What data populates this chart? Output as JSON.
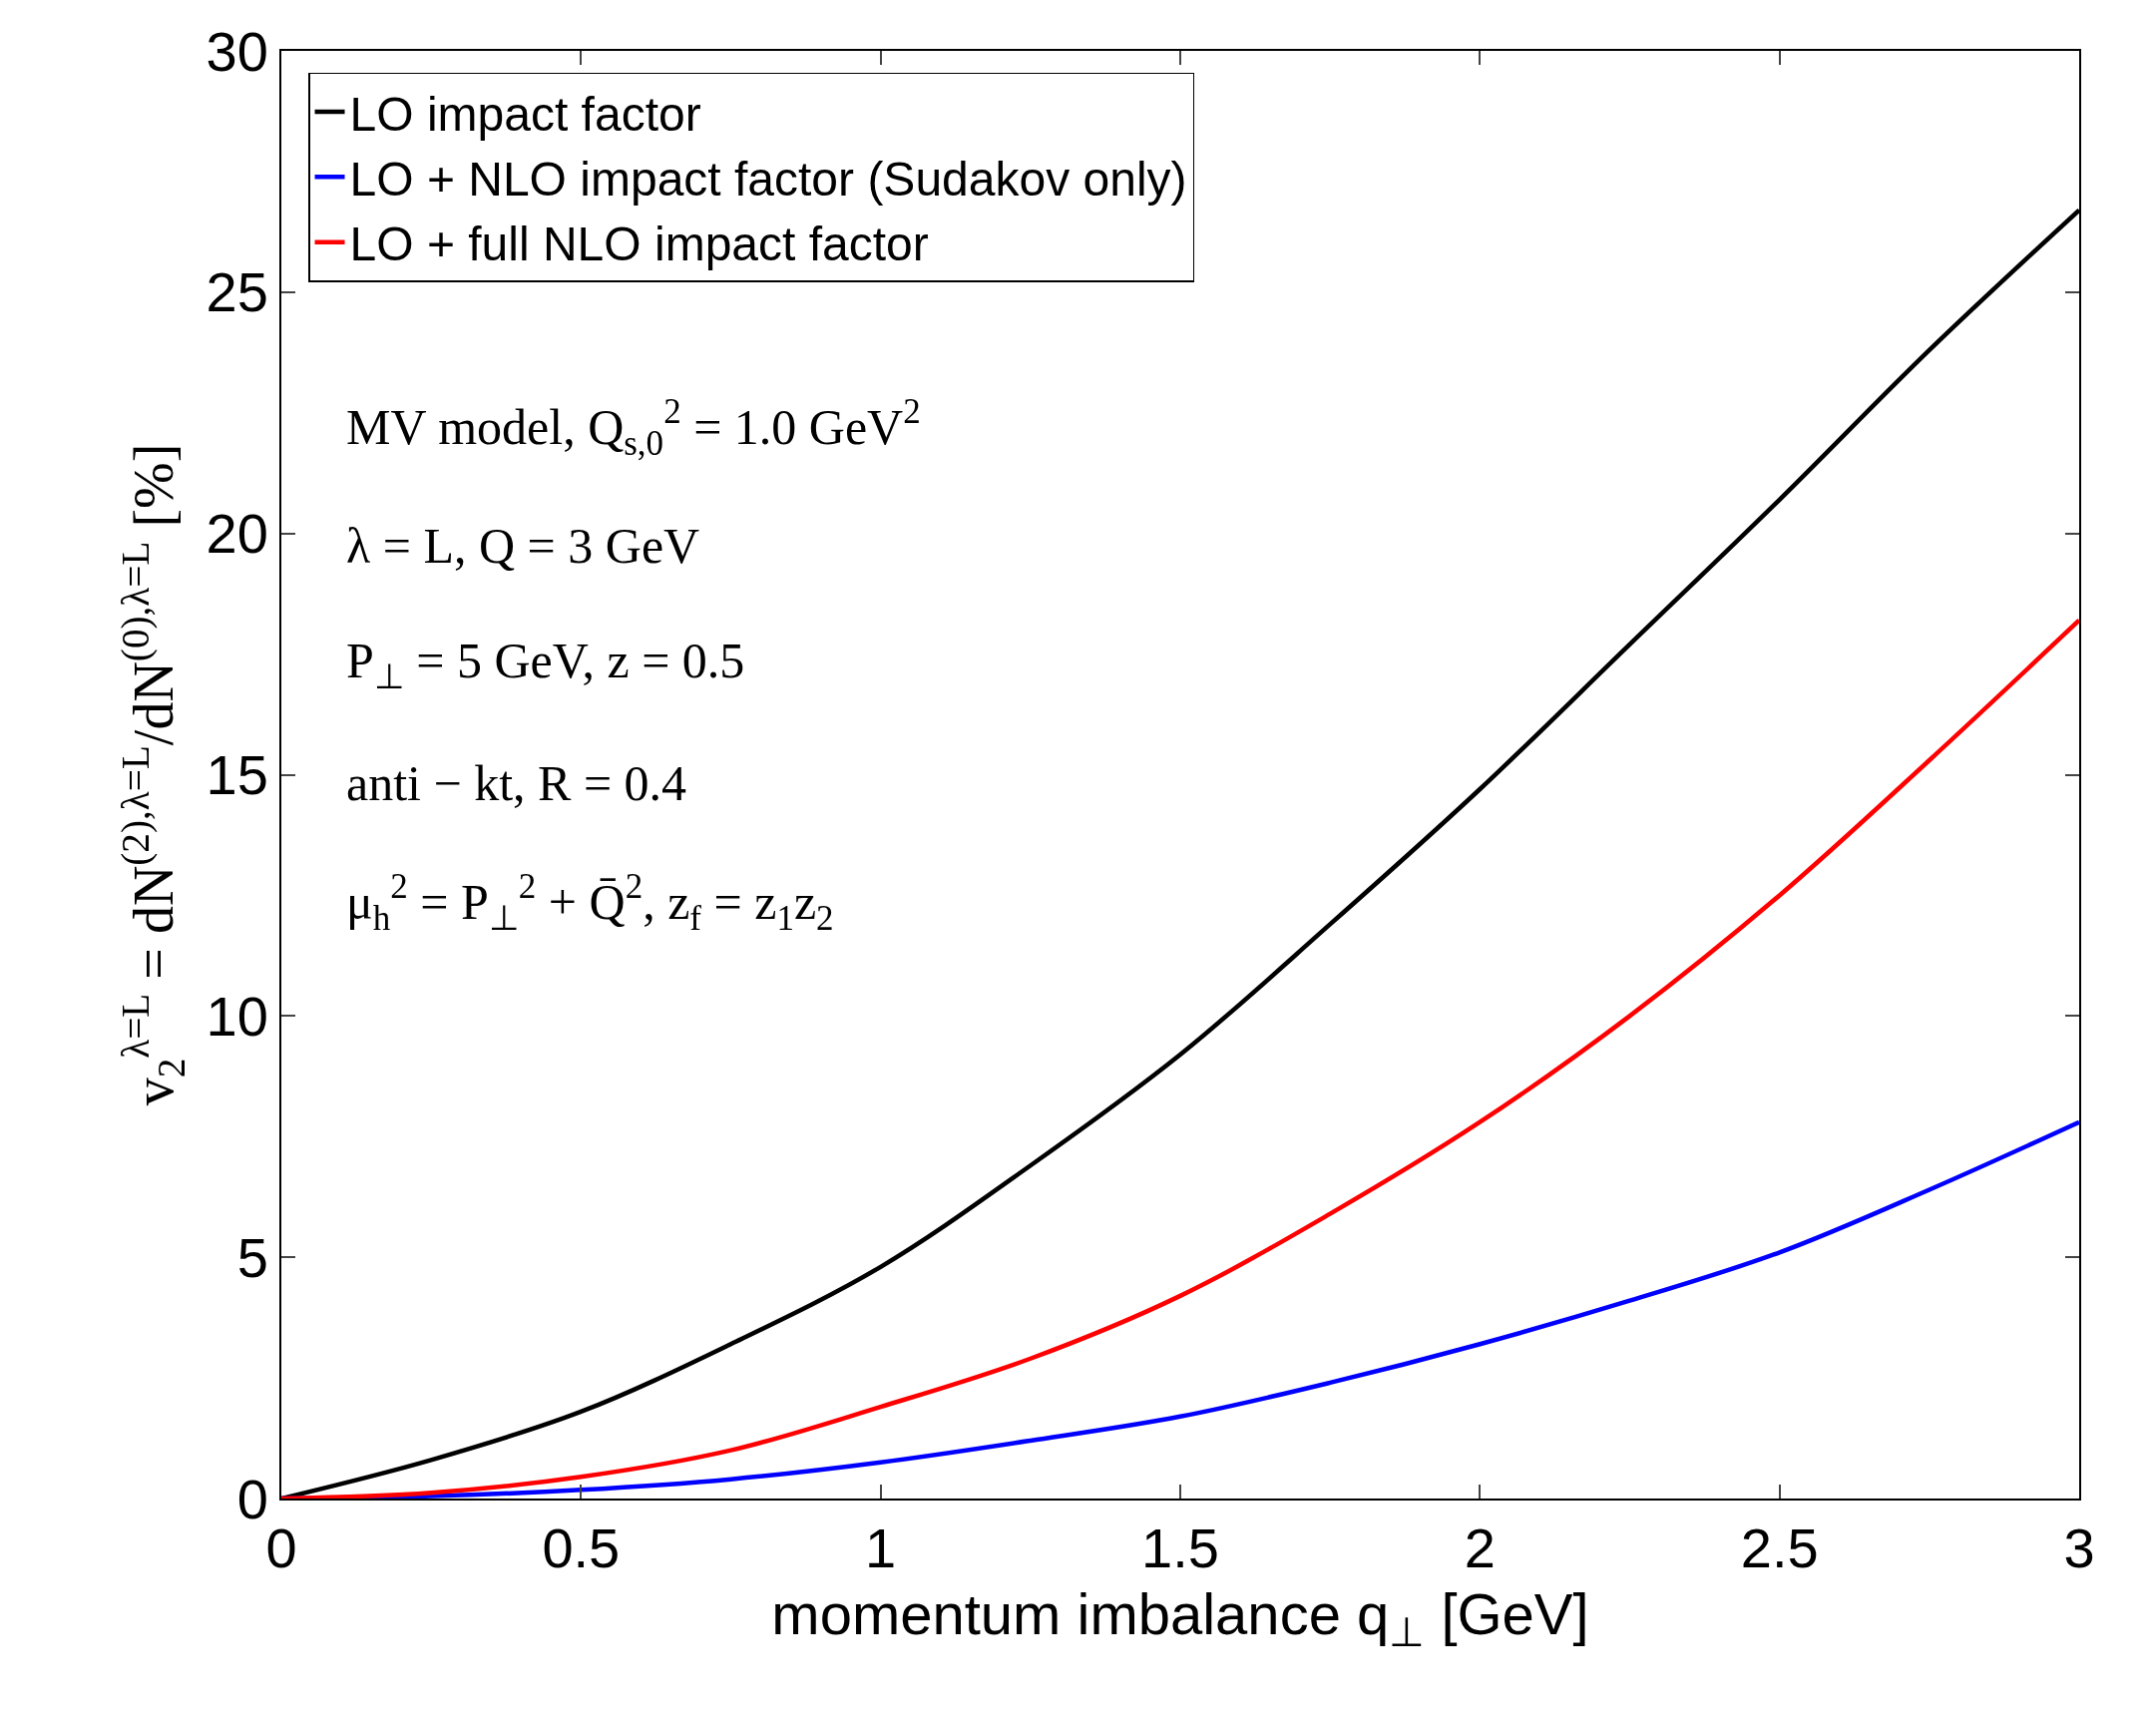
{
  "chart_data": {
    "type": "line",
    "xlabel": "momentum imbalance q$_{⊥}$ [GeV]",
    "ylabel": "v$_{2}$$^{λ=L}$ = dN$^{(2),λ=L}$/dN$^{(0),λ=L}$ [%]",
    "x": [
      0,
      0.25,
      0.5,
      0.75,
      1,
      1.25,
      1.5,
      1.75,
      2,
      2.25,
      2.5,
      2.75,
      3
    ],
    "series": [
      {
        "name": "LO impact factor",
        "color": "#000000",
        "values": [
          0,
          0.8,
          1.8,
          3.2,
          4.8,
          6.9,
          9.2,
          11.9,
          14.7,
          17.7,
          20.7,
          23.8,
          26.7
        ]
      },
      {
        "name": "LO + NLO impact factor (Sudakov only)",
        "color": "#0000ff",
        "values": [
          0,
          0.05,
          0.18,
          0.4,
          0.75,
          1.2,
          1.7,
          2.4,
          3.2,
          4.1,
          5.1,
          6.4,
          7.8
        ]
      },
      {
        "name": "LO + full NLO impact factor",
        "color": "#ff0000",
        "values": [
          0,
          0.12,
          0.45,
          1.0,
          1.9,
          2.9,
          4.2,
          5.9,
          7.8,
          10.0,
          12.5,
          15.3,
          18.2
        ]
      }
    ],
    "annotations": [
      "MV model, Q$_{s,0}$$^{2}$ = 1.0 GeV$^{2}$",
      "λ = L, Q = 3 GeV",
      "P$_{⊥}$ = 5 GeV, z = 0.5",
      "anti − kt, R = 0.4",
      "μ$_{h}$$^{2}$ = P$_{⊥}$$^{2}$ + Q̄$^{2}$, z$_{f}$ = z$_{1}$z$_{2}$"
    ],
    "xlim": [
      0,
      3
    ],
    "ylim": [
      0,
      30
    ],
    "xticks": [
      0,
      0.5,
      1,
      1.5,
      2,
      2.5,
      3
    ],
    "yticks": [
      0,
      5,
      10,
      15,
      20,
      25,
      30
    ],
    "legend": "top left",
    "marker": "none",
    "line_style": "solid"
  }
}
